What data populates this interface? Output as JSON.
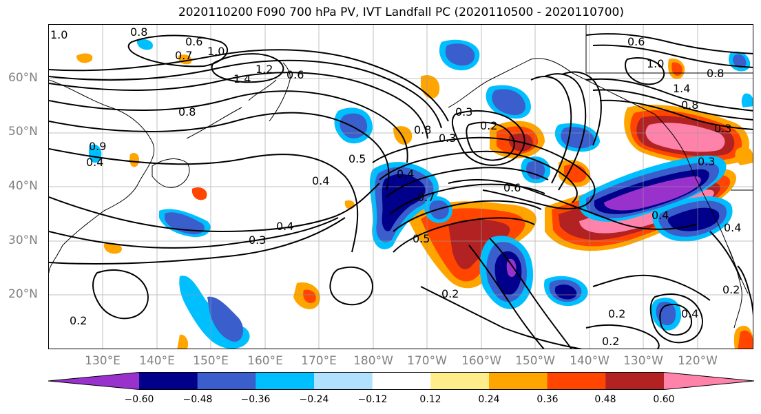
{
  "title": "2020110200 F090 700 hPa PV, IVT Landfall PC (2020110500 - 2020110700)",
  "lat_labels": [
    "60°N",
    "50°N",
    "40°N",
    "30°N",
    "20°N"
  ],
  "lon_labels": [
    "130°E",
    "140°E",
    "150°E",
    "160°E",
    "170°E",
    "180°W",
    "170°W",
    "160°W",
    "150°W",
    "140°W",
    "130°W",
    "120°W"
  ],
  "colorbar": {
    "colors": [
      "#9932cc",
      "#00008b",
      "#3a5fcd",
      "#00bfff",
      "#b0e2ff",
      "#ffffff",
      "#ffec8b",
      "#ffa500",
      "#ff4500",
      "#b22222",
      "#ff82ab"
    ],
    "tick_labels": [
      "−0.60",
      "−0.48",
      "−0.36",
      "−0.24",
      "−0.12",
      "0.12",
      "0.24",
      "0.36",
      "0.48",
      "0.60"
    ]
  },
  "contour_labels": [
    "1.0",
    "0.8",
    "0.6",
    "0.7",
    "1.0",
    "1.4",
    "1.2",
    "0.6",
    "0.8",
    "0.9",
    "0.4",
    "0.3",
    "0.4",
    "0.5",
    "0.4",
    "0.3",
    "0.2",
    "0.8",
    "0.3",
    "0.4",
    "0.7",
    "0.6",
    "0.5",
    "0.2",
    "0.2",
    "0.2",
    "0.6",
    "1.0",
    "0.8",
    "1.4",
    "0.8",
    "0.3",
    "0.3",
    "0.4",
    "0.2",
    "0.2",
    "0.4",
    "0.4"
  ]
}
